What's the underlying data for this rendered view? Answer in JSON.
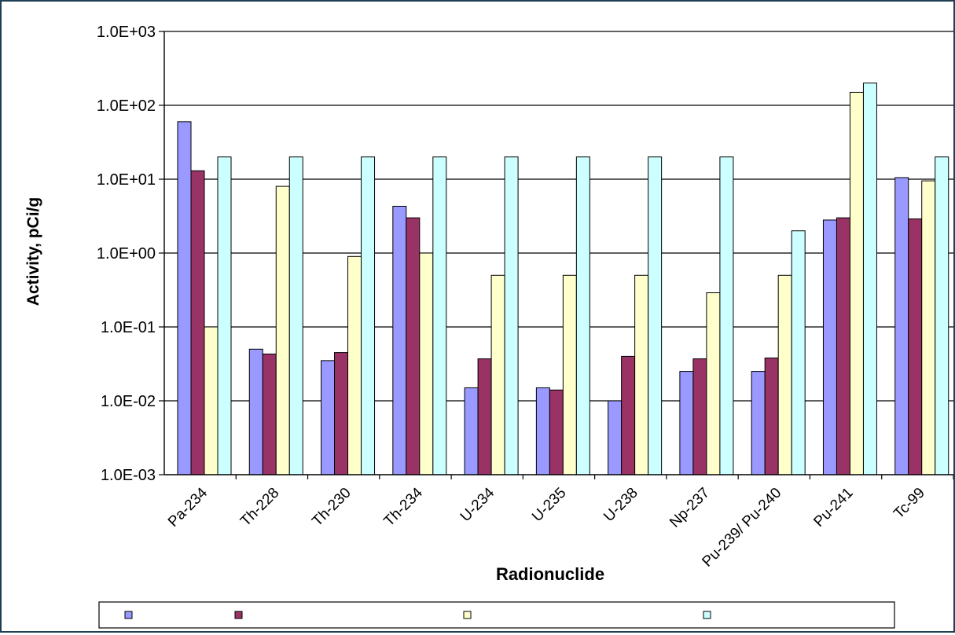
{
  "chart_data": {
    "type": "bar",
    "title": "",
    "xlabel": "Radionuclide",
    "ylabel": "Activity, pCi/g",
    "yscale": "log",
    "ylim": [
      0.001,
      1000
    ],
    "yticks": [
      0.001,
      0.01,
      0.1,
      1,
      10,
      100,
      1000
    ],
    "ytick_labels": [
      "1.0E-03",
      "1.0E-02",
      "1.0E-01",
      "1.0E+00",
      "1.0E+01",
      "1.0E+02",
      "1.0E+03"
    ],
    "grid": true,
    "legend_position": "bottom",
    "categories": [
      "Pa-234",
      "Th-228",
      "Th-230",
      "Th-234",
      "U-234",
      "U-235",
      "U-238",
      "Np-237",
      "Pu-239/ Pu-240",
      "Pu-241",
      "Tc-99"
    ],
    "series": [
      {
        "name": "",
        "color": "#9999ff",
        "values": [
          60,
          0.05,
          0.035,
          4.3,
          0.015,
          0.015,
          0.01,
          0.025,
          0.025,
          2.8,
          10.5
        ]
      },
      {
        "name": "",
        "color": "#993366",
        "values": [
          13,
          0.043,
          0.045,
          3.0,
          0.037,
          0.014,
          0.04,
          0.037,
          0.038,
          3.0,
          2.9
        ]
      },
      {
        "name": "",
        "color": "#ffffcc",
        "values": [
          0.1,
          8.0,
          0.9,
          1.0,
          0.5,
          0.5,
          0.5,
          0.29,
          0.5,
          150,
          9.5
        ]
      },
      {
        "name": "",
        "color": "#ccffff",
        "values": [
          20,
          20,
          20,
          20,
          20,
          20,
          20,
          20,
          2,
          200,
          20
        ]
      }
    ]
  }
}
